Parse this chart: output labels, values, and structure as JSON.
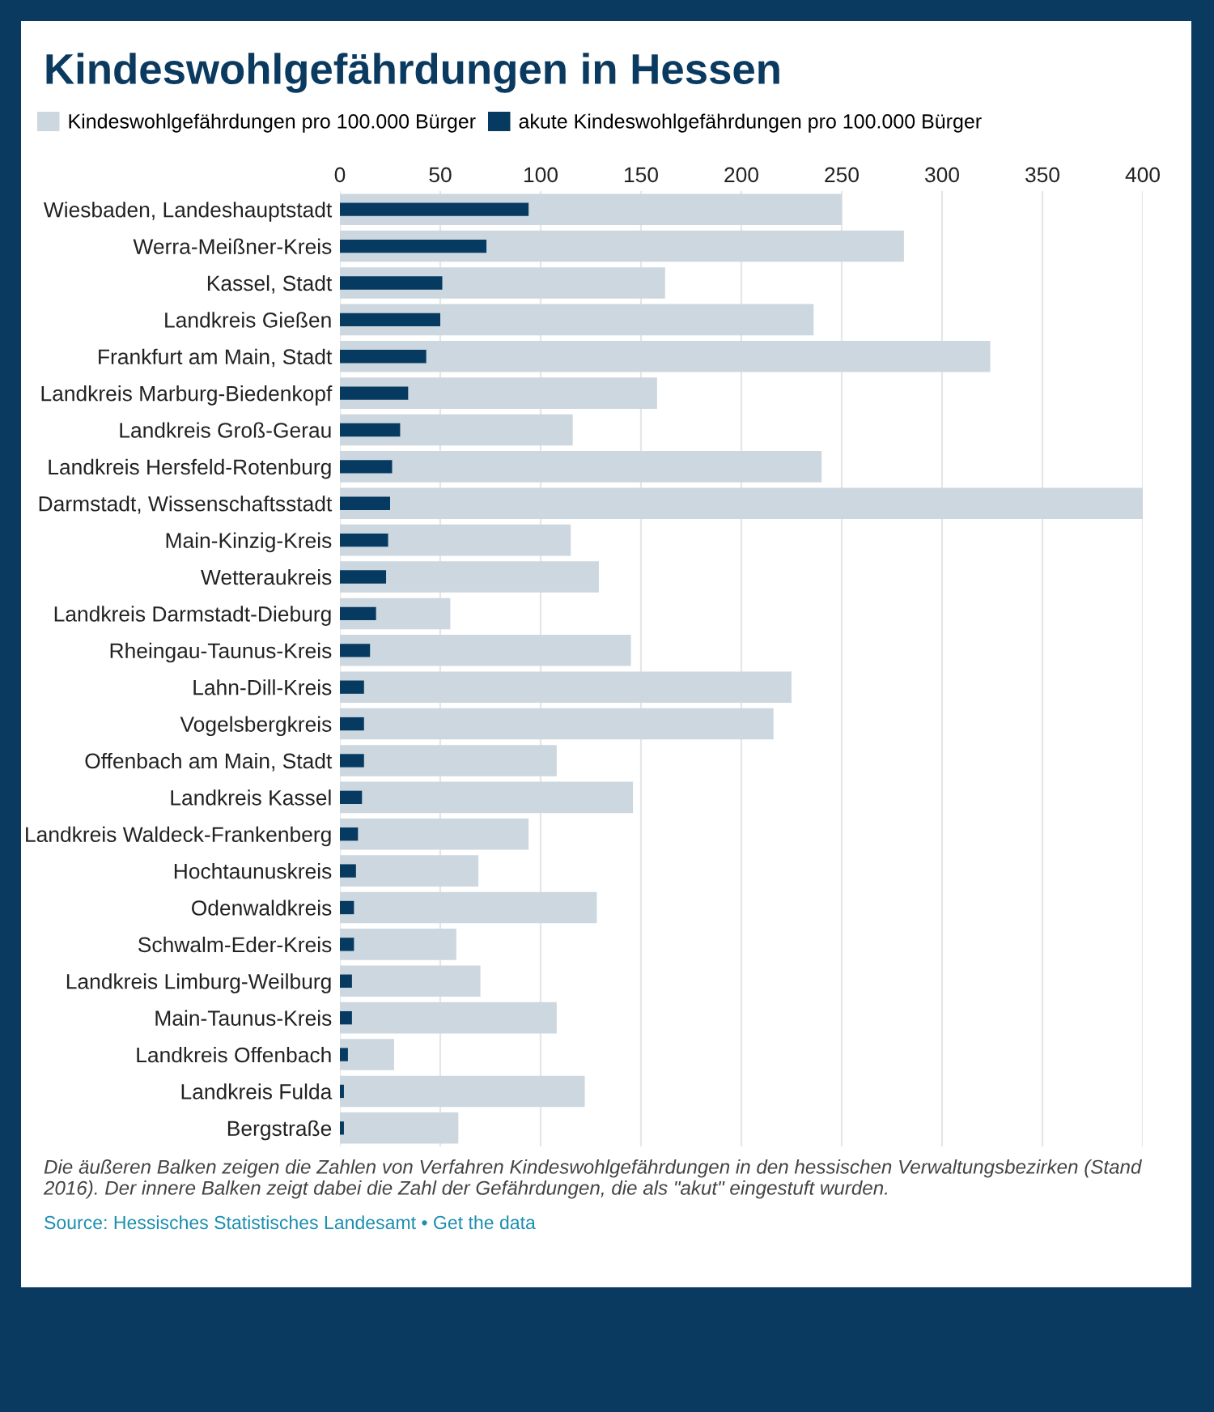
{
  "chart_data": {
    "type": "bar",
    "orientation": "horizontal",
    "title": "Kindeswohlgefährdungen in Hessen",
    "categories": [
      "Wiesbaden, Landeshauptstadt",
      "Werra-Meißner-Kreis",
      "Kassel, Stadt",
      "Landkreis Gießen",
      "Frankfurt am Main, Stadt",
      "Landkreis Marburg-Biedenkopf",
      "Landkreis Groß-Gerau",
      "Landkreis Hersfeld-Rotenburg",
      "Darmstadt, Wissenschaftsstadt",
      "Main-Kinzig-Kreis",
      "Wetteraukreis",
      "Landkreis Darmstadt-Dieburg",
      "Rheingau-Taunus-Kreis",
      "Lahn-Dill-Kreis",
      "Vogelsbergkreis",
      "Offenbach am Main, Stadt",
      "Landkreis Kassel",
      "Landkreis Waldeck-Frankenberg",
      "Hochtaunuskreis",
      "Odenwaldkreis",
      "Schwalm-Eder-Kreis",
      "Landkreis Limburg-Weilburg",
      "Main-Taunus-Kreis",
      "Landkreis Offenbach",
      "Landkreis Fulda",
      "Bergstraße"
    ],
    "series": [
      {
        "name": "Kindeswohlgefährdungen pro 100.000 Bürger",
        "color": "#ccd7e0",
        "values": [
          250,
          281,
          162,
          236,
          324,
          158,
          116,
          240,
          400,
          115,
          129,
          55,
          145,
          225,
          216,
          108,
          146,
          94,
          69,
          128,
          58,
          70,
          108,
          27,
          122,
          59
        ]
      },
      {
        "name": "akute Kindeswohlgefährdungen pro 100.000 Bürger",
        "color": "#073a60",
        "values": [
          94,
          73,
          51,
          50,
          43,
          34,
          30,
          26,
          25,
          24,
          23,
          18,
          15,
          12,
          12,
          12,
          11,
          9,
          8,
          7,
          7,
          6,
          6,
          4,
          2,
          2
        ]
      }
    ],
    "xlim": [
      0,
      400
    ],
    "xticks": [
      0,
      50,
      100,
      150,
      200,
      250,
      300,
      350,
      400
    ],
    "grid": "x",
    "legend": "top",
    "annotations": [
      "Die äußeren Balken zeigen die Zahlen von Verfahren Kindeswohlgefährdungen in den hessischen Verwaltungsbezirken (Stand 2016). Der innere Balken zeigt dabei die Zahl der Gefährdungen, die als \"akut\" eingestuft wurden.",
      "Source: Hessisches Statistisches Landesamt • Get the data"
    ]
  }
}
